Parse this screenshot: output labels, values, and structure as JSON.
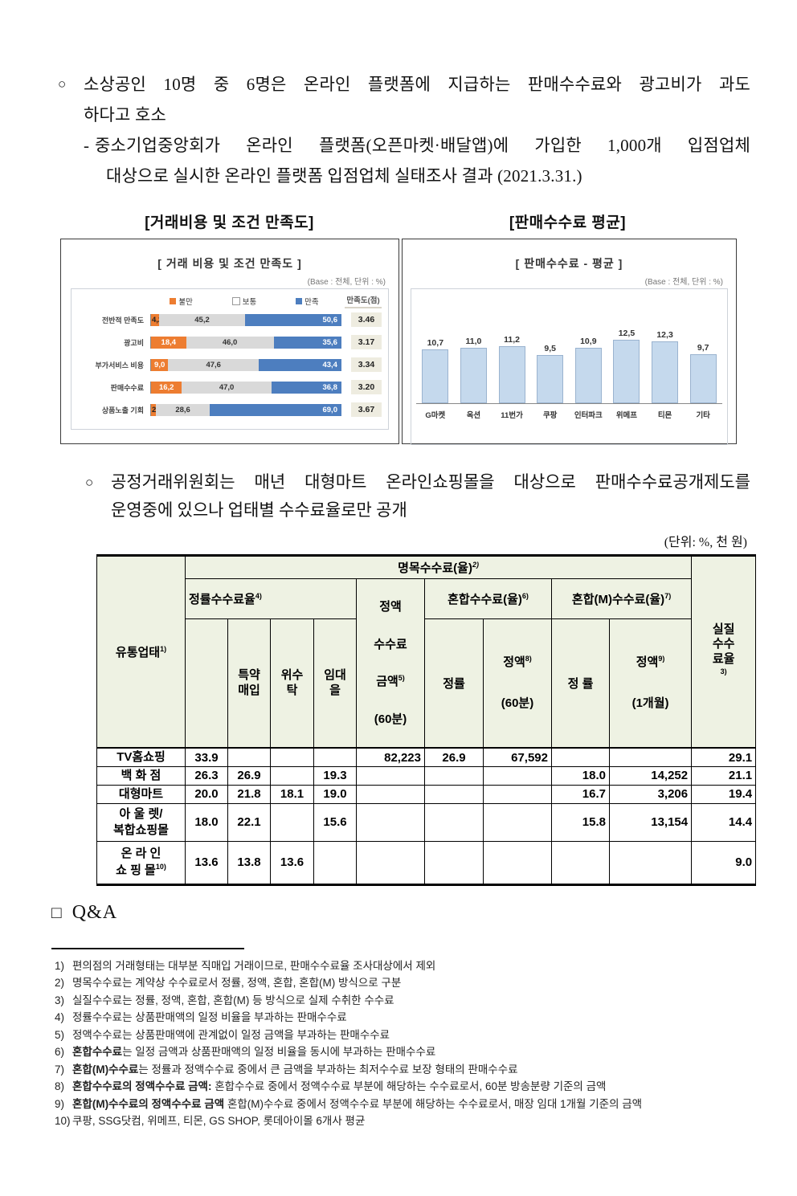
{
  "intro": {
    "bullet": "○",
    "line1": "소상공인 10명 중 6명은 온라인 플랫폼에 지급하는 판매수수료와 광고비가 과도",
    "line2": "하다고 호소",
    "dash": "-",
    "sub_line1": "중소기업중앙회가 온라인 플랫폼(오픈마켓·배달앱)에 가입한 1,000개 입점업체",
    "sub_line2": "대상으로 실시한 온라인 플랫폼 입점업체 실태조사 결과 (2021.3.31.)"
  },
  "captions": {
    "left": "[거래비용 및 조건 만족도]",
    "right": "[판매수수료 평균]"
  },
  "chart_data": [
    {
      "type": "bar",
      "orientation": "horizontal-stacked",
      "title": "[ 거래 비용 및 조건 만족도 ]",
      "base_note": "(Base : 전체, 단위 : %)",
      "legend": [
        "불만",
        "보통",
        "만족"
      ],
      "legend_position": "top",
      "score_header": "만족도(점)",
      "categories": [
        "전반적 만족도",
        "광고비",
        "부가서비스 비용",
        "판매수수료",
        "상품노출 기회"
      ],
      "series": [
        {
          "name": "불만",
          "values": [
            4.2,
            18.4,
            9.0,
            16.2,
            2.4
          ]
        },
        {
          "name": "보통",
          "values": [
            45.2,
            46.0,
            47.6,
            47.0,
            28.6
          ]
        },
        {
          "name": "만족",
          "values": [
            50.6,
            35.6,
            43.4,
            36.8,
            69.0
          ]
        }
      ],
      "scores": [
        "3.46",
        "3.17",
        "3.34",
        "3.20",
        "3.67"
      ],
      "colors": {
        "불만": "#ED7D31",
        "보통": "#D9D9D9",
        "만족": "#4D7EBF"
      },
      "xlim": [
        0,
        100
      ],
      "grid": false
    },
    {
      "type": "bar",
      "orientation": "vertical",
      "title": "[ 판매수수료 - 평균 ]",
      "base_note": "(Base : 전체, 단위 : %)",
      "categories": [
        "G마켓",
        "옥션",
        "11번가",
        "쿠팡",
        "인터파크",
        "위메프",
        "티몬",
        "기타"
      ],
      "values": [
        10.7,
        11.0,
        11.2,
        9.5,
        10.9,
        12.5,
        12.3,
        9.7
      ],
      "bar_color": "#C5D9ED",
      "ylim": [
        0,
        14
      ],
      "grid": false
    }
  ],
  "section2": {
    "bullet": "○",
    "line1": "공정거래위원회는 매년 대형마트 온라인쇼핑몰을 대상으로 판매수수료공개제도를",
    "line2": "운영중에 있으나 업태별 수수료율로만 공개",
    "unit_note": "(단위: %, 천 원)"
  },
  "table": {
    "header": {
      "distribution": {
        "text": "유통업태",
        "sup": "1)"
      },
      "nominal": {
        "text": "명목수수료(율)",
        "sup": "2)"
      },
      "actual": {
        "lines": "실질\n수수\n료율",
        "sup": "3)"
      },
      "rate_group": {
        "text": "정률수수료율",
        "sup": "4)"
      },
      "rate_subcols": [
        "특약\n매입",
        "위수\n탁",
        "임대\n을"
      ],
      "fixed": {
        "l1": "정액",
        "l2": "수수료",
        "l3": "금액",
        "sup": "5)",
        "l4": "(60분)"
      },
      "mixed": {
        "text": "혼합수수료(율)",
        "sup": "6)"
      },
      "mixed_rate": "정률",
      "mixed_fixed": {
        "l1": "정액",
        "sup": "8)",
        "l2": "(60분)"
      },
      "mixedM": {
        "text": "혼합(M)수수료(율)",
        "sup": "7)"
      },
      "mixedM_rate": "정  률",
      "mixedM_fixed": {
        "l1": "정액",
        "sup": "9)",
        "l2": "(1개월)"
      }
    },
    "rows": [
      {
        "label": "TV홈쇼핑",
        "sup": "",
        "cells": [
          "33.9",
          "",
          "",
          "",
          "82,223",
          "26.9",
          "67,592",
          "",
          "",
          "29.1"
        ]
      },
      {
        "label": "백 화 점",
        "sup": "",
        "cells": [
          "26.3",
          "26.9",
          "",
          "19.3",
          "",
          "",
          "",
          "18.0",
          "14,252",
          "21.1"
        ]
      },
      {
        "label": "대형마트",
        "sup": "",
        "cells": [
          "20.0",
          "21.8",
          "18.1",
          "19.0",
          "",
          "",
          "",
          "16.7",
          "3,206",
          "19.4"
        ]
      },
      {
        "label": "아 울 렛/\n복합쇼핑몰",
        "sup": "",
        "cells": [
          "18.0",
          "22.1",
          "",
          "15.6",
          "",
          "",
          "",
          "15.8",
          "13,154",
          "14.4"
        ]
      },
      {
        "label": "온 라 인\n쇼 핑 몰",
        "sup": "10)",
        "cells": [
          "13.6",
          "13.8",
          "13.6",
          "",
          "",
          "",
          "",
          "",
          "",
          "9.0"
        ]
      }
    ]
  },
  "qa": {
    "bullet": "□",
    "title": "Q&A"
  },
  "footnotes": [
    {
      "num": "1)",
      "bold": "",
      "text": "편의점의 거래형태는 대부분 직매입 거래이므로, 판매수수료율 조사대상에서 제외"
    },
    {
      "num": "2)",
      "bold": "",
      "text": "명목수수료는 계약상 수수료로서 정률, 정액, 혼합, 혼합(M) 방식으로 구분"
    },
    {
      "num": "3)",
      "bold": "",
      "text": "실질수수료는 정률, 정액, 혼합, 혼합(M) 등 방식으로 실제 수취한 수수료"
    },
    {
      "num": "4)",
      "bold": "",
      "text": "정률수수료는 상품판매액의 일정 비율을 부과하는 판매수수료"
    },
    {
      "num": "5)",
      "bold": "",
      "text": "정액수수료는 상품판매액에 관계없이 일정 금액을 부과하는 판매수수료"
    },
    {
      "num": "6)",
      "bold": "혼합수수료",
      "text": "는 일정 금액과 상품판매액의 일정 비율을 동시에 부과하는 판매수수료"
    },
    {
      "num": "7)",
      "bold": "혼합(M)수수료",
      "text": "는 정률과 정액수수료 중에서 큰 금액을 부과하는 최저수수료 보장 형태의 판매수수료"
    },
    {
      "num": "8)",
      "bold": "혼합수수료의 정액수수료 금액:",
      "text": " 혼합수수료 중에서 정액수수료 부분에 해당하는 수수료로서, 60분 방송분량 기준의 금액"
    },
    {
      "num": "9)",
      "bold": "혼합(M)수수료의 정액수수료 금액",
      "text": " 혼합(M)수수료 중에서 정액수수료 부분에 해당하는 수수료로서, 매장 임대 1개월 기준의 금액"
    },
    {
      "num": "10)",
      "bold": "",
      "text": "쿠팡, SSG닷컴, 위메프, 티몬, GS SHOP, 롯데아이몰 6개사 평균"
    }
  ]
}
